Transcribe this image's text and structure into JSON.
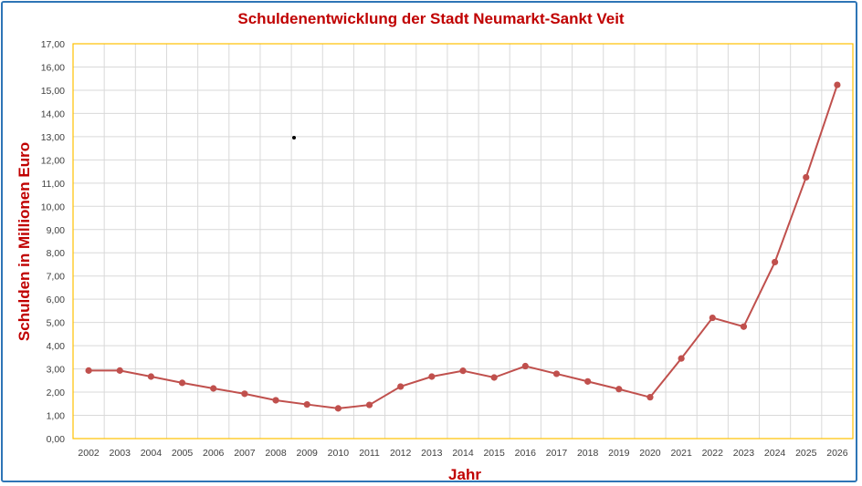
{
  "chart_data": {
    "type": "line",
    "title": "Schuldenentwicklung der Stadt Neumarkt-Sankt Veit",
    "xlabel": "Jahr",
    "ylabel": "Schulden in Millionen Euro",
    "ylim": [
      0,
      17
    ],
    "y_ticks": [
      "0,00",
      "1,00",
      "2,00",
      "3,00",
      "4,00",
      "5,00",
      "6,00",
      "7,00",
      "8,00",
      "9,00",
      "10,00",
      "11,00",
      "12,00",
      "13,00",
      "14,00",
      "15,00",
      "16,00",
      "17,00"
    ],
    "categories": [
      "2002",
      "2003",
      "2004",
      "2005",
      "2006",
      "2007",
      "2008",
      "2009",
      "2010",
      "2011",
      "2012",
      "2013",
      "2014",
      "2015",
      "2016",
      "2017",
      "2018",
      "2019",
      "2020",
      "2021",
      "2022",
      "2023",
      "2024",
      "2025",
      "2026"
    ],
    "series": [
      {
        "values": [
          2.93,
          2.93,
          2.67,
          2.4,
          2.16,
          1.93,
          1.65,
          1.47,
          1.3,
          1.45,
          2.24,
          2.67,
          2.92,
          2.63,
          3.12,
          2.79,
          2.46,
          2.13,
          1.78,
          3.45,
          5.2,
          4.82,
          7.6,
          11.25,
          15.23
        ]
      }
    ],
    "grid": true,
    "colors": {
      "line": "#c0504d",
      "marker": "#c0504d",
      "title": "#c00000",
      "frame": "#2e75b6",
      "plot_border": "#ffc000",
      "grid": "#d9d9d9"
    }
  }
}
